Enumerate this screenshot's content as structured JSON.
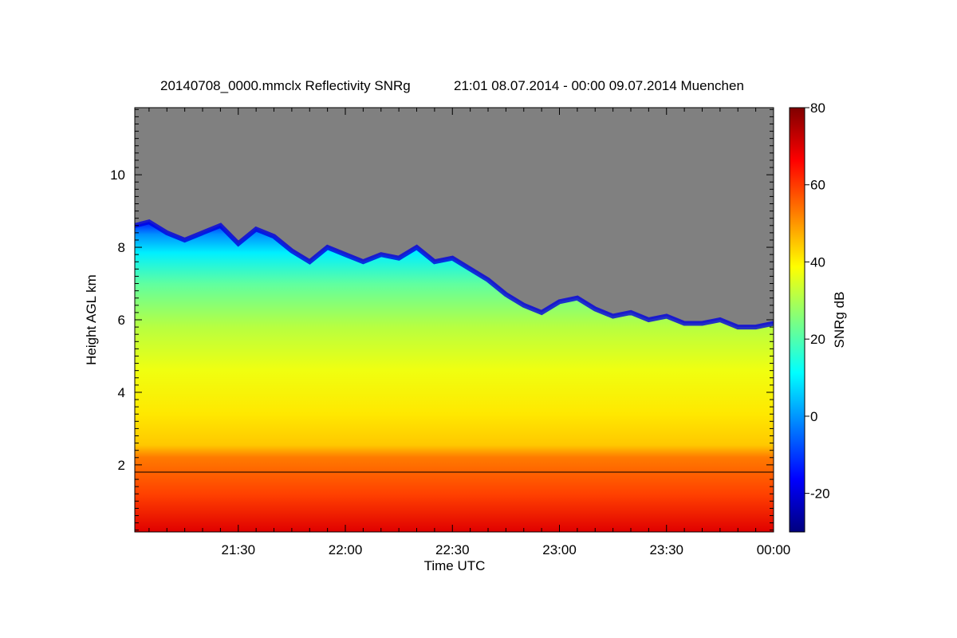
{
  "chart_data": {
    "type": "heatmap",
    "title_parts": [
      "20140708_0000.mmclx Reflectivity SNRg",
      "21:01 08.07.2014 - 00:00 09.07.2014 Muenchen"
    ],
    "xlabel": "Time UTC",
    "ylabel": "Height AGL km",
    "colorbar_label": "SNRg dB",
    "x_ticks": [
      "21:30",
      "22:00",
      "22:30",
      "23:00",
      "23:30",
      "00:00"
    ],
    "x_tick_minutes": [
      1290,
      1320,
      1350,
      1380,
      1410,
      1440
    ],
    "x_range_minutes": [
      1261,
      1440
    ],
    "y_ticks": [
      2,
      4,
      6,
      8,
      10
    ],
    "y_range_km": [
      0.15,
      11.85
    ],
    "colorbar_ticks": [
      80,
      60,
      40,
      20,
      0,
      -20
    ],
    "colorbar_range": [
      -30,
      80
    ],
    "colorbar_colors": [
      "#00007f",
      "#0000ff",
      "#007fff",
      "#00ffff",
      "#7fff7f",
      "#ffff00",
      "#ff7f00",
      "#ff0000",
      "#7f0000"
    ],
    "no_signal_color": "#808080",
    "cloud_top_km": [
      [
        1261,
        8.6
      ],
      [
        1265,
        8.7
      ],
      [
        1270,
        8.4
      ],
      [
        1275,
        8.2
      ],
      [
        1280,
        8.4
      ],
      [
        1285,
        8.6
      ],
      [
        1290,
        8.1
      ],
      [
        1295,
        8.5
      ],
      [
        1300,
        8.3
      ],
      [
        1305,
        7.9
      ],
      [
        1310,
        7.6
      ],
      [
        1315,
        8.0
      ],
      [
        1320,
        7.8
      ],
      [
        1325,
        7.6
      ],
      [
        1330,
        7.8
      ],
      [
        1335,
        7.7
      ],
      [
        1340,
        8.0
      ],
      [
        1345,
        7.6
      ],
      [
        1350,
        7.7
      ],
      [
        1355,
        7.4
      ],
      [
        1360,
        7.1
      ],
      [
        1365,
        6.7
      ],
      [
        1370,
        6.4
      ],
      [
        1375,
        6.2
      ],
      [
        1380,
        6.5
      ],
      [
        1385,
        6.6
      ],
      [
        1390,
        6.3
      ],
      [
        1395,
        6.1
      ],
      [
        1400,
        6.2
      ],
      [
        1405,
        6.0
      ],
      [
        1410,
        6.1
      ],
      [
        1415,
        5.9
      ],
      [
        1420,
        5.9
      ],
      [
        1425,
        6.0
      ],
      [
        1430,
        5.8
      ],
      [
        1435,
        5.8
      ],
      [
        1440,
        5.9
      ]
    ],
    "boundary_line_km": 1.8
  }
}
